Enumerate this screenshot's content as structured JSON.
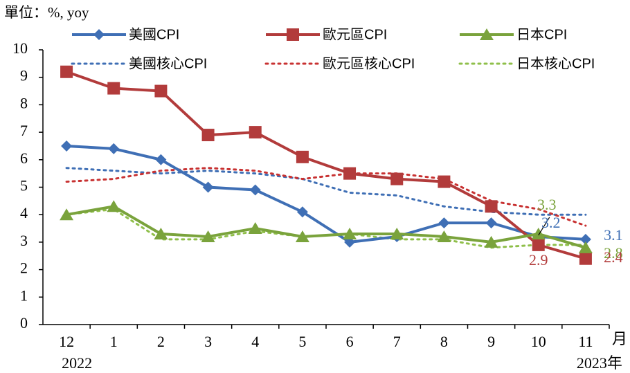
{
  "chart_data": {
    "type": "line",
    "unit_label": "單位：%, yoy",
    "x_unit_label": "月",
    "categories": [
      "12",
      "1",
      "2",
      "3",
      "4",
      "5",
      "6",
      "7",
      "8",
      "9",
      "10",
      "11"
    ],
    "year_labels": [
      "2022",
      null,
      null,
      null,
      null,
      null,
      null,
      null,
      null,
      null,
      null,
      "2023年"
    ],
    "ylim": [
      0,
      10
    ],
    "yticks": [
      0,
      1,
      2,
      3,
      4,
      5,
      6,
      7,
      8,
      9,
      10
    ],
    "grid": false,
    "series": [
      {
        "name": "美國CPI",
        "color": "#3f6fb5",
        "style": "solid",
        "marker": "diamond",
        "values": [
          6.5,
          6.4,
          6.0,
          5.0,
          4.9,
          4.1,
          3.0,
          3.2,
          3.7,
          3.7,
          3.2,
          3.1
        ]
      },
      {
        "name": "歐元區CPI",
        "color": "#b23b3b",
        "style": "solid",
        "marker": "square",
        "values": [
          9.2,
          8.6,
          8.5,
          6.9,
          7.0,
          6.1,
          5.5,
          5.3,
          5.2,
          4.3,
          2.9,
          2.4
        ]
      },
      {
        "name": "日本CPI",
        "color": "#7aa33c",
        "style": "solid",
        "marker": "triangle",
        "values": [
          4.0,
          4.3,
          3.3,
          3.2,
          3.5,
          3.2,
          3.3,
          3.3,
          3.2,
          3.0,
          3.3,
          2.8
        ]
      },
      {
        "name": "美國核心CPI",
        "color": "#3f6fb5",
        "style": "dotted",
        "marker": "none",
        "values": [
          5.7,
          5.6,
          5.5,
          5.6,
          5.5,
          5.3,
          4.8,
          4.7,
          4.3,
          4.1,
          4.0,
          4.0
        ]
      },
      {
        "name": "歐元區核心CPI",
        "color": "#c83232",
        "style": "dotted",
        "marker": "none",
        "values": [
          5.2,
          5.3,
          5.6,
          5.7,
          5.6,
          5.3,
          5.5,
          5.5,
          5.3,
          4.5,
          4.2,
          3.6
        ]
      },
      {
        "name": "日本核心CPI",
        "color": "#8fbf4a",
        "style": "dotted",
        "marker": "none",
        "values": [
          4.0,
          4.2,
          3.1,
          3.1,
          3.4,
          3.2,
          3.3,
          3.1,
          3.1,
          2.8,
          2.9,
          2.9
        ]
      }
    ]
  }
}
